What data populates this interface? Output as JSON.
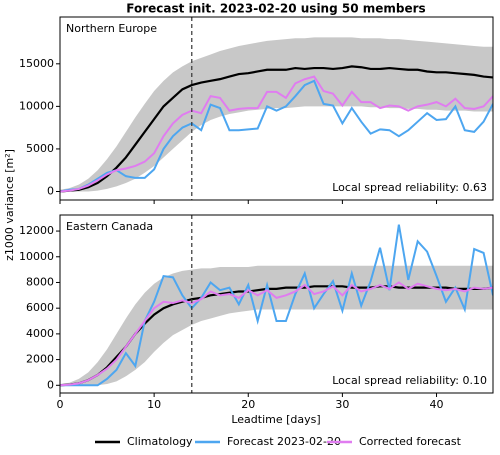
{
  "title": "Forecast init. 2023-02-20 using 50 members",
  "xlabel": "Leadtime [days]",
  "ylabel": "z1000 variance [m²]",
  "chart_data": [
    {
      "type": "line",
      "title": "Northern Europe",
      "annotation": "Local spread reliability: 0.63",
      "x": [
        0,
        1,
        2,
        3,
        4,
        5,
        6,
        7,
        8,
        9,
        10,
        11,
        12,
        13,
        14,
        15,
        16,
        17,
        18,
        19,
        20,
        21,
        22,
        23,
        24,
        25,
        26,
        27,
        28,
        29,
        30,
        31,
        32,
        33,
        34,
        35,
        36,
        37,
        38,
        39,
        40,
        41,
        42,
        43,
        44,
        45,
        46
      ],
      "xlim": [
        0,
        46
      ],
      "xticks": [
        0,
        10,
        20,
        30,
        40
      ],
      "ylim": [
        -1000,
        20500
      ],
      "yticks": [
        0,
        5000,
        10000,
        15000
      ],
      "vline": 14,
      "band": {
        "color": "#c8c8c8",
        "lower": [
          0,
          0,
          0,
          0,
          100,
          300,
          600,
          1000,
          1500,
          2200,
          3000,
          4000,
          5000,
          6000,
          7000,
          7800,
          8400,
          8800,
          9100,
          9300,
          9500,
          9600,
          9700,
          9800,
          9800,
          9900,
          10000,
          10000,
          10000,
          10000,
          10000,
          10000,
          10000,
          9900,
          9900,
          9800,
          9800,
          9700,
          9700,
          9600,
          9600,
          9500,
          9500,
          9500,
          9400,
          9400,
          9400
        ],
        "upper": [
          200,
          400,
          800,
          1500,
          2500,
          3800,
          5300,
          7000,
          8700,
          10300,
          11800,
          13000,
          14000,
          14700,
          15300,
          15700,
          16100,
          16500,
          16800,
          17100,
          17300,
          17500,
          17700,
          17800,
          17900,
          18000,
          18000,
          18100,
          18100,
          18100,
          18100,
          18100,
          18000,
          18000,
          18000,
          17900,
          17900,
          17800,
          17700,
          17600,
          17500,
          17400,
          17300,
          17200,
          17100,
          17000,
          17000
        ]
      },
      "series": [
        {
          "name": "Climatology",
          "color": "#000000",
          "values": [
            0,
            100,
            200,
            500,
            1000,
            1800,
            2800,
            4000,
            5500,
            7000,
            8500,
            10000,
            11000,
            12000,
            12500,
            12800,
            13000,
            13200,
            13500,
            13800,
            13900,
            14100,
            14300,
            14300,
            14300,
            14500,
            14400,
            14500,
            14500,
            14400,
            14500,
            14700,
            14600,
            14400,
            14400,
            14500,
            14400,
            14300,
            14300,
            14100,
            14000,
            14000,
            13900,
            13800,
            13700,
            13500,
            13400
          ]
        },
        {
          "name": "Forecast 2023-02-20",
          "color": "#4da6f0",
          "values": [
            0,
            200,
            300,
            800,
            1500,
            2200,
            2500,
            1800,
            1600,
            1600,
            2600,
            5000,
            6500,
            7500,
            8000,
            7200,
            10200,
            9800,
            7200,
            7200,
            7300,
            7400,
            10000,
            9500,
            10000,
            11200,
            12500,
            13000,
            10300,
            10100,
            8000,
            9800,
            8200,
            6800,
            7300,
            7200,
            6500,
            7200,
            8200,
            9200,
            8400,
            8500,
            10000,
            7200,
            7000,
            8200,
            10300
          ]
        },
        {
          "name": "Corrected forecast",
          "color": "#e07cf0",
          "values": [
            0,
            100,
            300,
            700,
            1300,
            2000,
            2500,
            2700,
            3000,
            3500,
            4500,
            6500,
            8000,
            9000,
            9500,
            9200,
            11200,
            11000,
            9500,
            9700,
            9800,
            9800,
            11700,
            11700,
            11000,
            12700,
            13200,
            13500,
            11800,
            11500,
            10100,
            11700,
            10500,
            10500,
            9800,
            10100,
            10000,
            9500,
            10000,
            10200,
            10500,
            10000,
            10900,
            9800,
            9700,
            10000,
            11200
          ]
        }
      ]
    },
    {
      "type": "line",
      "title": "Eastern Canada",
      "annotation": "Local spread reliability: 0.10",
      "x": [
        0,
        1,
        2,
        3,
        4,
        5,
        6,
        7,
        8,
        9,
        10,
        11,
        12,
        13,
        14,
        15,
        16,
        17,
        18,
        19,
        20,
        21,
        22,
        23,
        24,
        25,
        26,
        27,
        28,
        29,
        30,
        31,
        32,
        33,
        34,
        35,
        36,
        37,
        38,
        39,
        40,
        41,
        42,
        43,
        44,
        45,
        46
      ],
      "xlim": [
        0,
        46
      ],
      "xticks": [
        0,
        10,
        20,
        30,
        40
      ],
      "ylim": [
        -600,
        13250
      ],
      "yticks": [
        0,
        2000,
        4000,
        6000,
        8000,
        10000,
        12000
      ],
      "vline": 14,
      "band": {
        "color": "#c8c8c8",
        "lower": [
          0,
          0,
          0,
          0,
          0,
          100,
          300,
          700,
          1200,
          1800,
          2600,
          3300,
          3900,
          4300,
          4700,
          5000,
          5200,
          5400,
          5600,
          5700,
          5800,
          5900,
          5900,
          5900,
          5900,
          5900,
          5900,
          5900,
          5900,
          5900,
          5900,
          5900,
          5900,
          5900,
          5900,
          5900,
          5900,
          5900,
          5900,
          5900,
          5900,
          5900,
          5900,
          5900,
          5900,
          5900,
          5900
        ],
        "upper": [
          100,
          200,
          500,
          1000,
          1800,
          2800,
          4000,
          5200,
          6300,
          7200,
          7900,
          8400,
          8700,
          8900,
          9000,
          9100,
          9100,
          9200,
          9200,
          9200,
          9200,
          9300,
          9300,
          9300,
          9300,
          9300,
          9300,
          9300,
          9300,
          9300,
          9300,
          9300,
          9300,
          9300,
          9300,
          9300,
          9300,
          9300,
          9300,
          9300,
          9300,
          9300,
          9300,
          9300,
          9300,
          9300,
          9300
        ]
      },
      "series": [
        {
          "name": "Climatology",
          "color": "#000000",
          "values": [
            0,
            50,
            150,
            400,
            800,
            1400,
            2200,
            3000,
            4000,
            4800,
            5500,
            6000,
            6300,
            6500,
            6700,
            6800,
            7000,
            7100,
            7200,
            7300,
            7300,
            7400,
            7500,
            7500,
            7600,
            7600,
            7600,
            7700,
            7700,
            7700,
            7700,
            7600,
            7600,
            7600,
            7700,
            7700,
            7600,
            7600,
            7600,
            7600,
            7600,
            7600,
            7500,
            7500,
            7500,
            7500,
            7600
          ]
        },
        {
          "name": "Forecast 2023-02-20",
          "color": "#4da6f0",
          "values": [
            0,
            0,
            0,
            0,
            0,
            500,
            1200,
            2500,
            1500,
            5000,
            6500,
            8500,
            8400,
            7000,
            6000,
            6800,
            8000,
            7400,
            7600,
            6300,
            7800,
            5000,
            7800,
            5000,
            5000,
            7100,
            8700,
            6000,
            7100,
            8100,
            5800,
            8700,
            6200,
            8100,
            10700,
            7400,
            12500,
            8200,
            11200,
            10400,
            8500,
            6500,
            7600,
            5900,
            10600,
            10300,
            7000
          ]
        },
        {
          "name": "Corrected forecast",
          "color": "#e07cf0",
          "values": [
            0,
            50,
            150,
            400,
            800,
            1300,
            2000,
            3000,
            4000,
            5000,
            6000,
            6500,
            6400,
            6600,
            6400,
            6700,
            7300,
            7000,
            7100,
            6800,
            7400,
            7000,
            7400,
            6800,
            7000,
            7300,
            7800,
            7100,
            7300,
            7700,
            7000,
            7800,
            7300,
            7500,
            7800,
            7500,
            8000,
            7500,
            7900,
            7700,
            7500,
            7400,
            7500,
            7300,
            7600,
            7500,
            7600
          ]
        }
      ]
    }
  ]
}
